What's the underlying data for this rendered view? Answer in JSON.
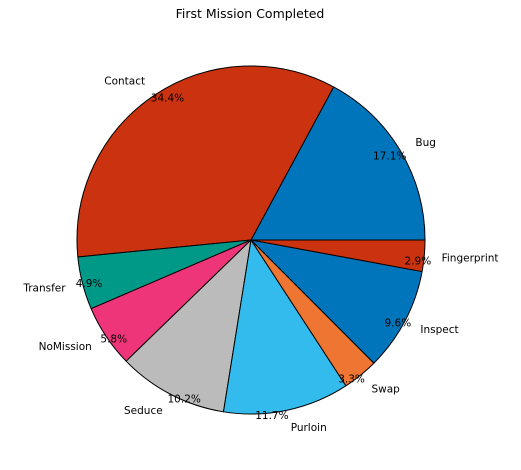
{
  "chart_data": {
    "type": "pie",
    "title": "First Mission Completed",
    "start_angle_deg": 0,
    "direction": "counterclockwise",
    "slices": [
      {
        "label": "Bug",
        "value": 17.1,
        "pct_text": "17.1%",
        "color": "#0075bb"
      },
      {
        "label": "Contact",
        "value": 34.4,
        "pct_text": "34.4%",
        "color": "#cb3310"
      },
      {
        "label": "Transfer",
        "value": 4.9,
        "pct_text": "4.9%",
        "color": "#009987"
      },
      {
        "label": "NoMission",
        "value": 5.8,
        "pct_text": "5.8%",
        "color": "#ef3579"
      },
      {
        "label": "Seduce",
        "value": 10.2,
        "pct_text": "10.2%",
        "color": "#bbbbbb"
      },
      {
        "label": "Purloin",
        "value": 11.7,
        "pct_text": "11.7%",
        "color": "#33bbed"
      },
      {
        "label": "Swap",
        "value": 3.3,
        "pct_text": "3.3%",
        "color": "#ee7632"
      },
      {
        "label": "Inspect",
        "value": 9.6,
        "pct_text": "9.6%",
        "color": "#0075bb"
      },
      {
        "label": "Fingerprint",
        "value": 2.9,
        "pct_text": "2.9%",
        "color": "#cb3310"
      }
    ]
  }
}
